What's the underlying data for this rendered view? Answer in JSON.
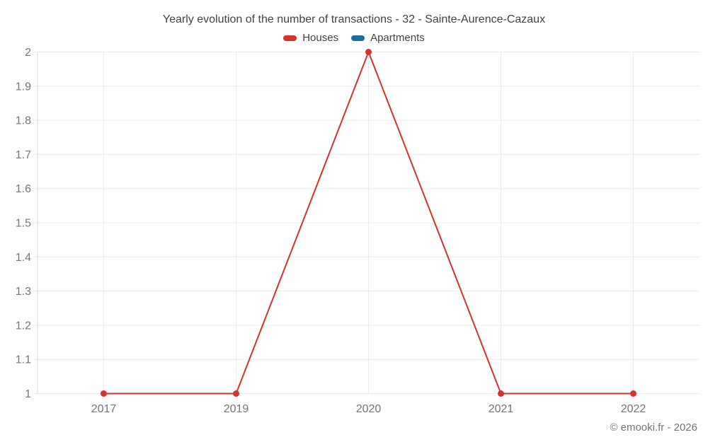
{
  "chart_data": {
    "type": "line",
    "title": "Yearly evolution of the number of transactions - 32 - Sainte-Aurence-Cazaux",
    "categories": [
      "2017",
      "2019",
      "2020",
      "2021",
      "2022"
    ],
    "series": [
      {
        "name": "Houses",
        "color": "#d7312c",
        "values": [
          1,
          1,
          2,
          1,
          1
        ]
      },
      {
        "name": "Apartments",
        "color": "#1a6f9b",
        "values": []
      }
    ],
    "xlabel": "",
    "ylabel": "",
    "ylim": [
      1,
      2
    ],
    "ytick_step": 0.1,
    "yticks": [
      1,
      1.1,
      1.2,
      1.3,
      1.4,
      1.5,
      1.6,
      1.7,
      1.8,
      1.9,
      2
    ],
    "grid": true,
    "legend_position": "top",
    "marker": "circle"
  },
  "footer": {
    "copyright": "© emooki.fr - 2026"
  },
  "colors": {
    "text_title": "#424242",
    "text_axis": "#757575",
    "gridline": "#ececec",
    "axis_line": "#d8d8d8",
    "background": "#ffffff"
  }
}
